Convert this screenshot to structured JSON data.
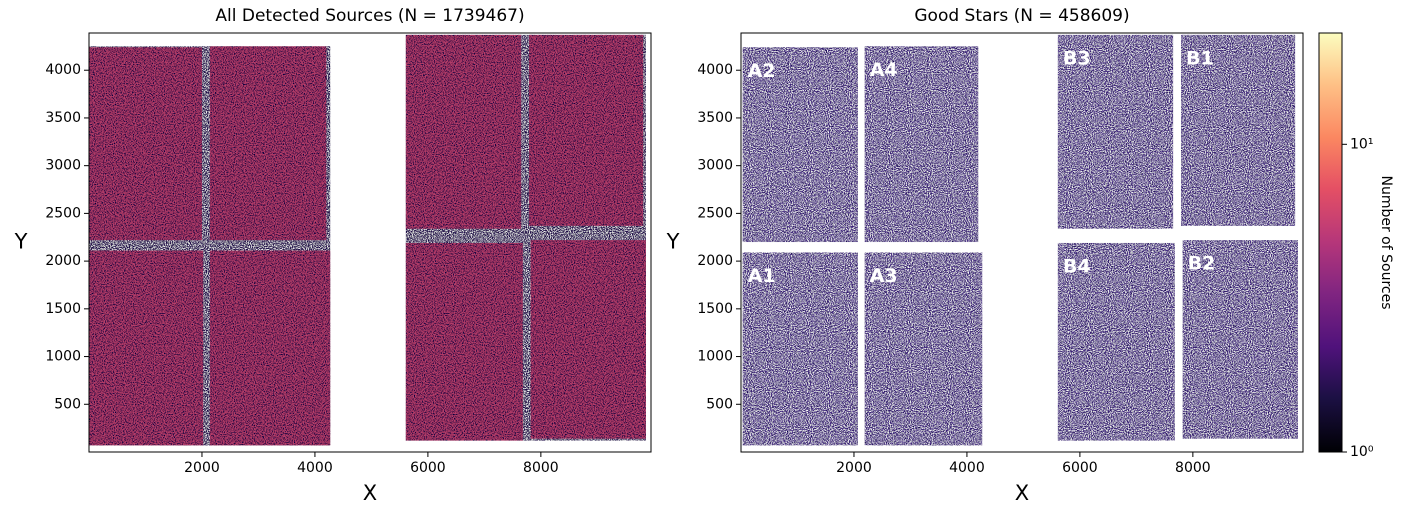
{
  "chart_data": [
    {
      "type": "heatmap",
      "title": "All Detected Sources (N = 1739467)",
      "x_label": "X",
      "y_label": "Y",
      "xlim": [
        0,
        9950
      ],
      "ylim": [
        0,
        4390
      ],
      "xticks": [
        2000,
        4000,
        6000,
        8000
      ],
      "yticks": [
        500,
        1000,
        1500,
        2000,
        2500,
        3000,
        3500,
        4000
      ],
      "color": "#b9416c",
      "gap_color": "#2b1850",
      "regions": [
        {
          "x": [
            0,
            2000
          ],
          "y": [
            2220,
            4240
          ]
        },
        {
          "x": [
            2140,
            4200
          ],
          "y": [
            2220,
            4250
          ]
        },
        {
          "x": [
            0,
            2020
          ],
          "y": [
            70,
            2110
          ]
        },
        {
          "x": [
            2140,
            4270
          ],
          "y": [
            70,
            2110
          ]
        },
        {
          "x": [
            5610,
            7650
          ],
          "y": [
            2340,
            4370
          ]
        },
        {
          "x": [
            7790,
            9810
          ],
          "y": [
            2370,
            4370
          ]
        },
        {
          "x": [
            5610,
            7680
          ],
          "y": [
            120,
            2190
          ]
        },
        {
          "x": [
            7820,
            9860
          ],
          "y": [
            140,
            2220
          ]
        }
      ]
    },
    {
      "type": "heatmap",
      "title": "Good Stars (N = 458609)",
      "x_label": "X",
      "y_label": "Y",
      "xlim": [
        0,
        9950
      ],
      "ylim": [
        0,
        4390
      ],
      "xticks": [
        2000,
        4000,
        6000,
        8000
      ],
      "yticks": [
        500,
        1000,
        1500,
        2000,
        2500,
        3000,
        3500,
        4000
      ],
      "color": "#4a2e86",
      "regions": [
        {
          "label": "A2",
          "x": [
            30,
            2070
          ],
          "y": [
            2200,
            4240
          ]
        },
        {
          "label": "A4",
          "x": [
            2190,
            4200
          ],
          "y": [
            2200,
            4250
          ]
        },
        {
          "label": "A1",
          "x": [
            30,
            2070
          ],
          "y": [
            70,
            2090
          ]
        },
        {
          "label": "A3",
          "x": [
            2190,
            4270
          ],
          "y": [
            70,
            2090
          ]
        },
        {
          "label": "B3",
          "x": [
            5610,
            7650
          ],
          "y": [
            2340,
            4370
          ]
        },
        {
          "label": "B1",
          "x": [
            7790,
            9810
          ],
          "y": [
            2370,
            4370
          ]
        },
        {
          "label": "B4",
          "x": [
            5610,
            7680
          ],
          "y": [
            120,
            2190
          ]
        },
        {
          "label": "B2",
          "x": [
            7820,
            9860
          ],
          "y": [
            140,
            2220
          ]
        }
      ],
      "colorbar": {
        "label": "Number of Sources",
        "scale": "log",
        "lim": [
          1,
          23
        ],
        "ticks": [
          {
            "value": 1,
            "label": "10⁰"
          },
          {
            "value": 10,
            "label": "10¹"
          }
        ]
      }
    }
  ]
}
